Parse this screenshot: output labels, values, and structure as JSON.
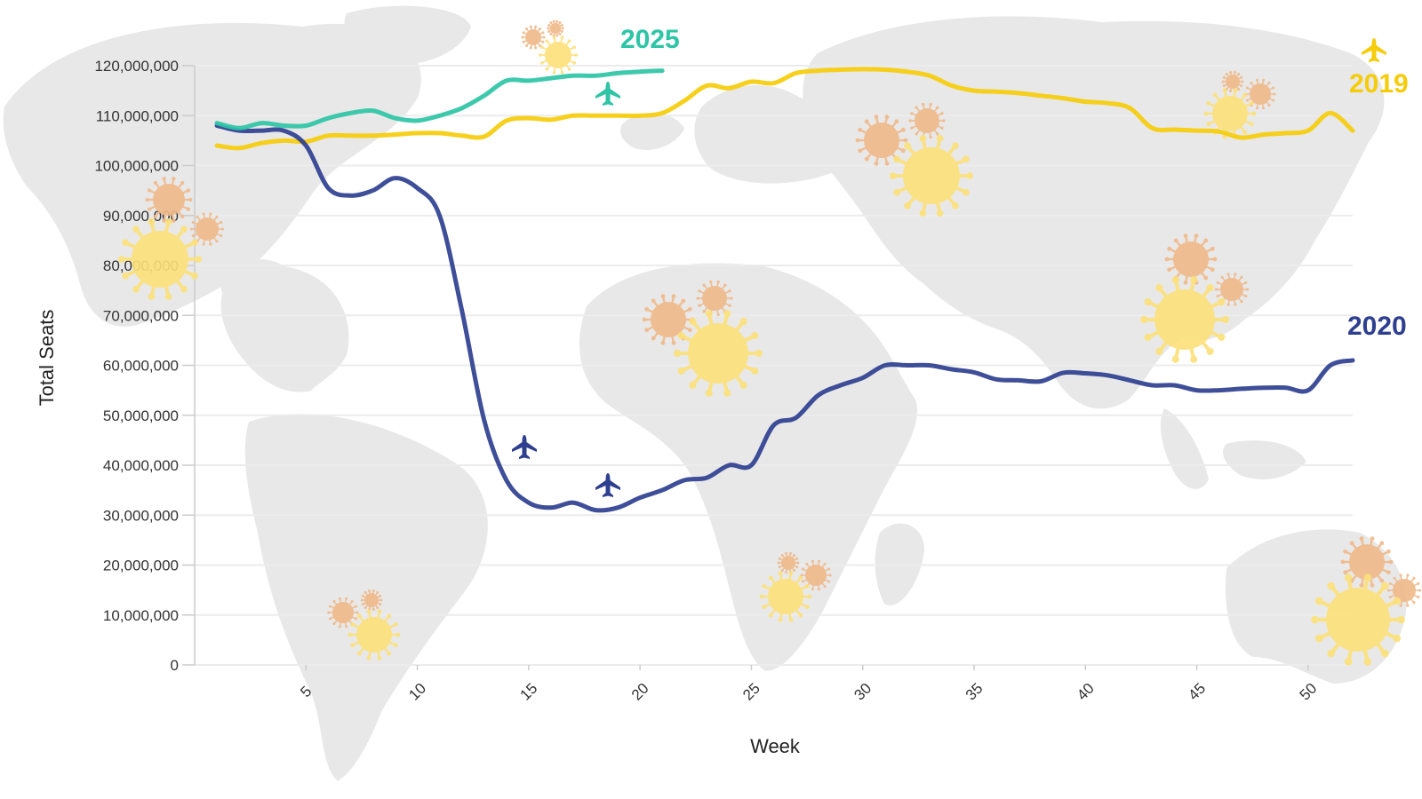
{
  "colors": {
    "series_2025": "#2ec4a6",
    "series_2019": "#f5cc0a",
    "series_2020": "#2e3f8f",
    "map_land": "#e8e8e8",
    "gridline": "#ececec",
    "virus_orange": "#f0b989",
    "virus_yellow": "#fde17a"
  },
  "icons": {
    "background": "world-map",
    "decorations": [
      "virus-icon",
      "airplane-icon"
    ]
  },
  "chart_data": {
    "type": "line",
    "title": "",
    "xlabel": "Week",
    "ylabel": "Total Seats",
    "xlim": [
      0,
      52
    ],
    "ylim": [
      0,
      120000000
    ],
    "xticks": [
      "5",
      "10",
      "15",
      "20",
      "25",
      "30",
      "35",
      "40",
      "45",
      "50"
    ],
    "yticks": [
      "0",
      "10,000,000",
      "20,000,000",
      "30,000,000",
      "40,000,000",
      "50,000,000",
      "60,000,000",
      "70,000,000",
      "80,000,000",
      "90,000,000",
      "100,000,000",
      "110,000,000",
      "120,000,000"
    ],
    "grid": true,
    "legend": "inline series labels at line ends",
    "series": [
      {
        "name": "2025",
        "x": [
          1,
          2,
          3,
          4,
          5,
          6,
          7,
          8,
          9,
          10,
          11,
          12,
          13,
          14,
          15,
          16,
          17,
          18,
          19,
          20,
          21
        ],
        "values": [
          108500000,
          107500000,
          108500000,
          108000000,
          108000000,
          109500000,
          110500000,
          111000000,
          109500000,
          109000000,
          110000000,
          111500000,
          114000000,
          117000000,
          117000000,
          117500000,
          118000000,
          118000000,
          118500000,
          118800000,
          119000000
        ]
      },
      {
        "name": "2019",
        "x": [
          1,
          2,
          3,
          4,
          5,
          6,
          7,
          8,
          9,
          10,
          11,
          12,
          13,
          14,
          15,
          16,
          17,
          18,
          19,
          20,
          21,
          22,
          23,
          24,
          25,
          26,
          27,
          28,
          29,
          30,
          31,
          32,
          33,
          34,
          35,
          36,
          37,
          38,
          39,
          40,
          41,
          42,
          43,
          44,
          45,
          46,
          47,
          48,
          49,
          50,
          51,
          52
        ],
        "values": [
          104000000,
          103500000,
          104500000,
          105000000,
          104800000,
          106000000,
          106000000,
          106000000,
          106200000,
          106500000,
          106500000,
          106000000,
          105800000,
          109000000,
          109500000,
          109200000,
          110000000,
          110000000,
          110000000,
          110000000,
          110500000,
          113000000,
          116000000,
          115500000,
          116800000,
          116500000,
          118500000,
          119000000,
          119200000,
          119300000,
          119200000,
          118800000,
          118000000,
          116000000,
          115000000,
          114800000,
          114500000,
          114000000,
          113500000,
          112800000,
          112500000,
          111500000,
          107500000,
          107200000,
          107000000,
          106800000,
          105600000,
          106200000,
          106500000,
          107000000,
          110500000,
          107000000
        ]
      },
      {
        "name": "2020",
        "x": [
          1,
          2,
          3,
          4,
          5,
          6,
          7,
          8,
          9,
          10,
          11,
          12,
          13,
          14,
          15,
          16,
          17,
          18,
          19,
          20,
          21,
          22,
          23,
          24,
          25,
          26,
          27,
          28,
          29,
          30,
          31,
          32,
          33,
          34,
          35,
          36,
          37,
          38,
          39,
          40,
          41,
          42,
          43,
          44,
          45,
          46,
          47,
          48,
          49,
          50,
          51,
          52
        ],
        "values": [
          108000000,
          107000000,
          107000000,
          107000000,
          104000000,
          95500000,
          94000000,
          95000000,
          97500000,
          95500000,
          90000000,
          71000000,
          49000000,
          37000000,
          32500000,
          31500000,
          32500000,
          31000000,
          31500000,
          33500000,
          35000000,
          37000000,
          37500000,
          40000000,
          40000000,
          48000000,
          49500000,
          54000000,
          56000000,
          57500000,
          60000000,
          60000000,
          60000000,
          59200000,
          58600000,
          57200000,
          57000000,
          56800000,
          58500000,
          58400000,
          58000000,
          57000000,
          56000000,
          56000000,
          55000000,
          55000000,
          55300000,
          55500000,
          55500000,
          55000000,
          60000000,
          61000000
        ]
      }
    ]
  }
}
